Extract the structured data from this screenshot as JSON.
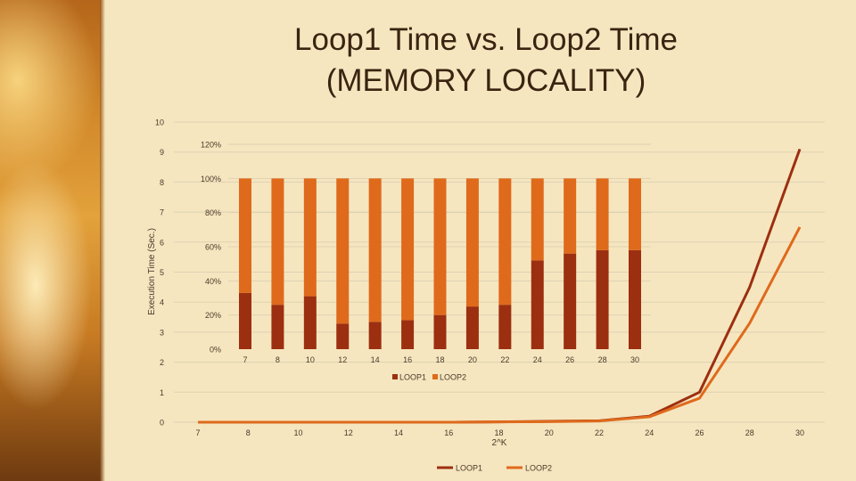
{
  "slide": {
    "title_line1": "Loop1 Time vs. Loop2 Time",
    "title_line2": "(MEMORY LOCALITY)"
  },
  "colors": {
    "loop1": "#9c2f10",
    "loop2": "#df6a1c",
    "grid": "#ddd2b2",
    "text": "#4a3a2a"
  },
  "chart_data": [
    {
      "type": "line",
      "x": [
        7,
        8,
        10,
        12,
        14,
        16,
        18,
        20,
        22,
        24,
        26,
        28,
        30
      ],
      "series": [
        {
          "name": "LOOP1",
          "values": [
            0,
            0,
            0,
            0,
            0,
            0,
            0.01,
            0.03,
            0.05,
            0.2,
            1.0,
            4.5,
            9.1
          ]
        },
        {
          "name": "LOOP2",
          "values": [
            0,
            0,
            0,
            0,
            0,
            0,
            0.01,
            0.02,
            0.04,
            0.18,
            0.8,
            3.3,
            6.5
          ]
        }
      ],
      "ylabel": "Execution Time (Sec.)",
      "xlabel": "2^K",
      "ylim": [
        0,
        10
      ],
      "yticks": [
        "0",
        "1",
        "2",
        "3",
        "4",
        "5",
        "6",
        "7",
        "8",
        "9",
        "10"
      ],
      "xticks": [
        "7",
        "8",
        "10",
        "12",
        "14",
        "16",
        "18",
        "20",
        "22",
        "24",
        "26",
        "28",
        "30"
      ],
      "legend": "bottom",
      "grid": true
    },
    {
      "type": "bar",
      "stacked": "percent",
      "categories": [
        "7",
        "8",
        "10",
        "12",
        "14",
        "16",
        "18",
        "20",
        "22",
        "24",
        "26",
        "28",
        "30"
      ],
      "series": [
        {
          "name": "LOOP1",
          "values": [
            33,
            26,
            31,
            15,
            16,
            17,
            20,
            25,
            26,
            52,
            56,
            58,
            58
          ]
        },
        {
          "name": "LOOP2",
          "values": [
            67,
            74,
            69,
            85,
            84,
            83,
            80,
            75,
            74,
            48,
            44,
            42,
            42
          ]
        }
      ],
      "ylim": [
        0,
        120
      ],
      "yticks": [
        "0%",
        "20%",
        "40%",
        "60%",
        "80%",
        "100%",
        "120%"
      ],
      "legend": "bottom",
      "grid": true
    }
  ]
}
